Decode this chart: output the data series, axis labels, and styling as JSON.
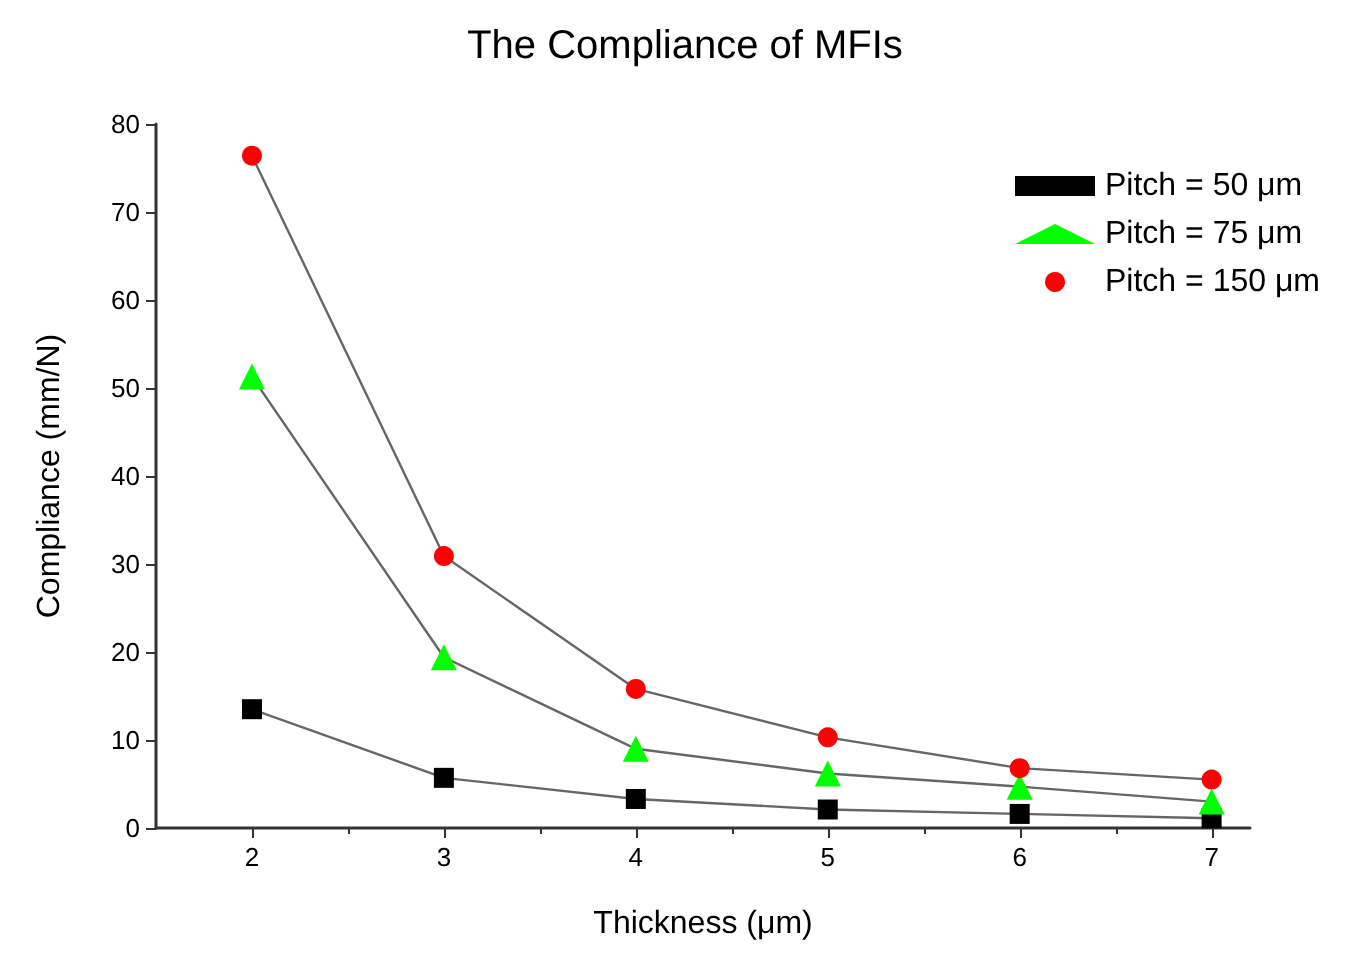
{
  "chart_data": {
    "type": "line",
    "title": "The Compliance of MFIs",
    "xlabel": "Thickness (μm)",
    "ylabel": "Compliance (mm/N)",
    "x": [
      2,
      3,
      4,
      5,
      6,
      7
    ],
    "series": [
      {
        "name": "Pitch = 50 μm",
        "color": "#000000",
        "marker": "square",
        "values": [
          13.5,
          5.7,
          3.3,
          2.1,
          1.6,
          1.1
        ]
      },
      {
        "name": "Pitch = 75 μm",
        "color": "#00ff00",
        "marker": "triangle",
        "values": [
          51.3,
          19.4,
          9.0,
          6.2,
          4.7,
          3.0
        ]
      },
      {
        "name": "Pitch = 150 μm",
        "color": "#ff0000",
        "marker": "circle",
        "values": [
          76.4,
          30.9,
          15.8,
          10.3,
          6.8,
          5.5
        ]
      }
    ],
    "xlim": [
      1.5,
      7.2
    ],
    "xticks": [
      2,
      3,
      4,
      5,
      6,
      7
    ],
    "ylim": [
      0,
      80
    ],
    "yticks": [
      0,
      10,
      20,
      30,
      40,
      50,
      60,
      70,
      80
    ],
    "grid": false,
    "legend": "top right"
  }
}
